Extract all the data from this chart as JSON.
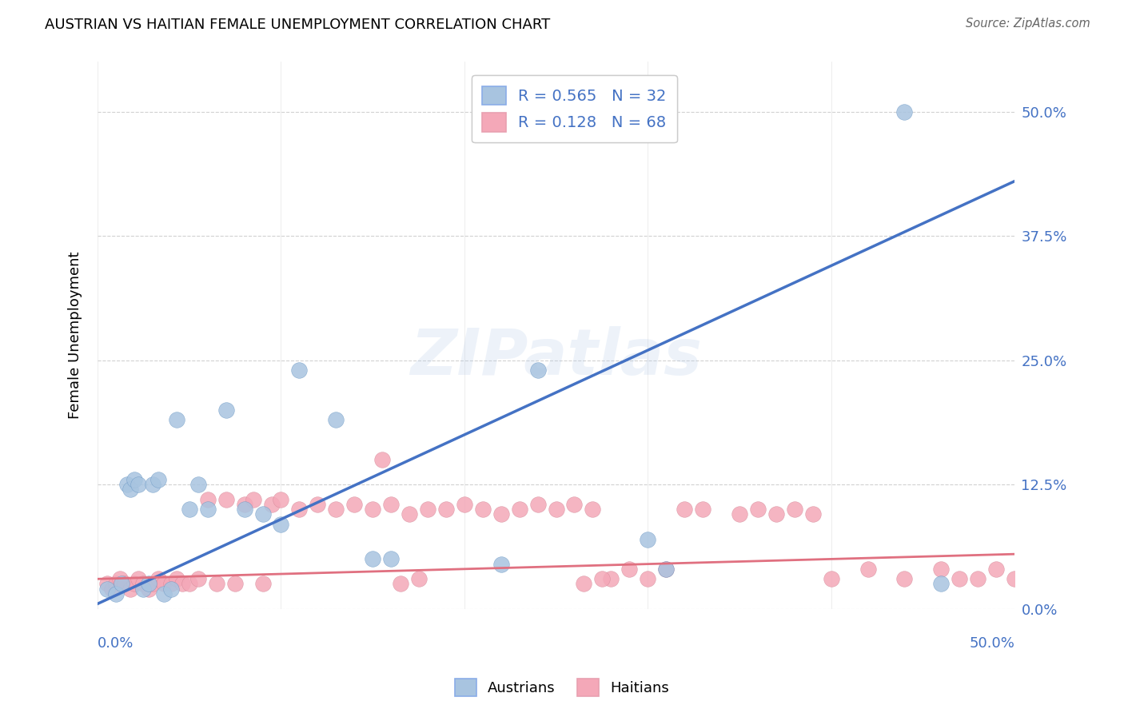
{
  "title": "AUSTRIAN VS HAITIAN FEMALE UNEMPLOYMENT CORRELATION CHART",
  "source": "Source: ZipAtlas.com",
  "ylabel": "Female Unemployment",
  "ytick_labels": [
    "0.0%",
    "12.5%",
    "25.0%",
    "37.5%",
    "50.0%"
  ],
  "ytick_values": [
    0.0,
    0.125,
    0.25,
    0.375,
    0.5
  ],
  "xmin": 0.0,
  "xmax": 0.5,
  "ymin": 0.0,
  "ymax": 0.55,
  "legend1_label": "R = 0.565   N = 32",
  "legend2_label": "R = 0.128   N = 68",
  "legend_austrians": "Austrians",
  "legend_haitians": "Haitians",
  "color_austrian": "#a8c4e0",
  "color_haitian": "#f4a8b8",
  "color_austrian_line": "#4472c4",
  "color_haitian_line": "#e07080",
  "austrian_line_x": [
    0.0,
    0.5
  ],
  "austrian_line_y": [
    0.005,
    0.43
  ],
  "haitian_line_x": [
    0.0,
    0.5
  ],
  "haitian_line_y": [
    0.03,
    0.055
  ],
  "austrian_x": [
    0.005,
    0.01,
    0.013,
    0.016,
    0.018,
    0.02,
    0.022,
    0.025,
    0.028,
    0.03,
    0.033,
    0.036,
    0.04,
    0.043,
    0.05,
    0.055,
    0.06,
    0.07,
    0.08,
    0.09,
    0.1,
    0.11,
    0.13,
    0.15,
    0.16,
    0.22,
    0.24,
    0.25,
    0.3,
    0.31,
    0.44,
    0.46
  ],
  "austrian_y": [
    0.02,
    0.015,
    0.025,
    0.125,
    0.12,
    0.13,
    0.125,
    0.02,
    0.025,
    0.125,
    0.13,
    0.015,
    0.02,
    0.19,
    0.1,
    0.125,
    0.1,
    0.2,
    0.1,
    0.095,
    0.085,
    0.24,
    0.19,
    0.05,
    0.05,
    0.045,
    0.24,
    0.5,
    0.07,
    0.04,
    0.5,
    0.025
  ],
  "haitian_x": [
    0.005,
    0.008,
    0.01,
    0.012,
    0.015,
    0.018,
    0.02,
    0.022,
    0.025,
    0.028,
    0.03,
    0.033,
    0.036,
    0.04,
    0.043,
    0.046,
    0.05,
    0.055,
    0.06,
    0.065,
    0.07,
    0.075,
    0.08,
    0.085,
    0.09,
    0.095,
    0.1,
    0.11,
    0.12,
    0.13,
    0.14,
    0.15,
    0.16,
    0.17,
    0.18,
    0.19,
    0.2,
    0.21,
    0.22,
    0.23,
    0.24,
    0.25,
    0.26,
    0.27,
    0.28,
    0.29,
    0.3,
    0.31,
    0.32,
    0.33,
    0.35,
    0.36,
    0.37,
    0.38,
    0.39,
    0.4,
    0.42,
    0.44,
    0.46,
    0.47,
    0.48,
    0.49,
    0.5,
    0.155,
    0.165,
    0.175,
    0.265,
    0.275
  ],
  "haitian_y": [
    0.025,
    0.02,
    0.025,
    0.03,
    0.025,
    0.02,
    0.025,
    0.03,
    0.025,
    0.02,
    0.025,
    0.03,
    0.025,
    0.025,
    0.03,
    0.025,
    0.025,
    0.03,
    0.11,
    0.025,
    0.11,
    0.025,
    0.105,
    0.11,
    0.025,
    0.105,
    0.11,
    0.1,
    0.105,
    0.1,
    0.105,
    0.1,
    0.105,
    0.095,
    0.1,
    0.1,
    0.105,
    0.1,
    0.095,
    0.1,
    0.105,
    0.1,
    0.105,
    0.1,
    0.03,
    0.04,
    0.03,
    0.04,
    0.1,
    0.1,
    0.095,
    0.1,
    0.095,
    0.1,
    0.095,
    0.03,
    0.04,
    0.03,
    0.04,
    0.03,
    0.03,
    0.04,
    0.03,
    0.15,
    0.025,
    0.03,
    0.025,
    0.03
  ]
}
